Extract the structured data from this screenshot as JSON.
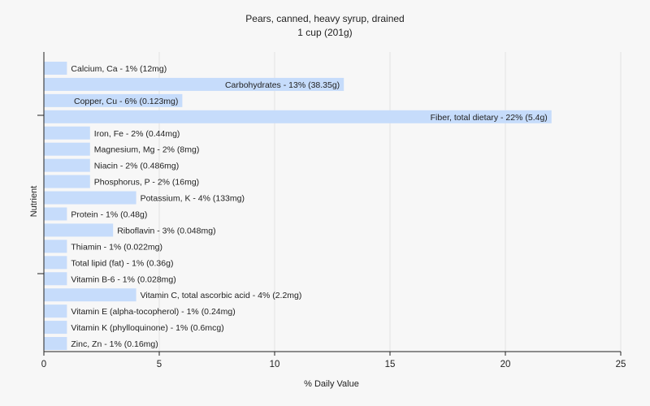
{
  "chart_data": {
    "type": "bar",
    "orientation": "horizontal",
    "title": "Pears, canned, heavy syrup, drained",
    "subtitle": "1 cup (201g)",
    "xlabel": "% Daily Value",
    "ylabel": "Nutrient",
    "xlim": [
      0,
      25
    ],
    "xticks": [
      0,
      5,
      10,
      15,
      20,
      25
    ],
    "grid": true,
    "bar_color": "#c6dcfb",
    "categories": [
      "Calcium, Ca",
      "Carbohydrates",
      "Copper, Cu",
      "Fiber, total dietary",
      "Iron, Fe",
      "Magnesium, Mg",
      "Niacin",
      "Phosphorus, P",
      "Potassium, K",
      "Protein",
      "Riboflavin",
      "Thiamin",
      "Total lipid (fat)",
      "Vitamin B-6",
      "Vitamin C, total ascorbic acid",
      "Vitamin E (alpha-tocopherol)",
      "Vitamin K (phylloquinone)",
      "Zinc, Zn"
    ],
    "values": [
      1,
      13,
      6,
      22,
      2,
      2,
      2,
      2,
      4,
      1,
      3,
      1,
      1,
      1,
      4,
      1,
      1,
      1
    ],
    "labels": [
      "Calcium, Ca - 1% (12mg)",
      "Carbohydrates - 13% (38.35g)",
      "Copper, Cu - 6% (0.123mg)",
      "Fiber, total dietary - 22% (5.4g)",
      "Iron, Fe - 2% (0.44mg)",
      "Magnesium, Mg - 2% (8mg)",
      "Niacin - 2% (0.486mg)",
      "Phosphorus, P - 2% (16mg)",
      "Potassium, K - 4% (133mg)",
      "Protein - 1% (0.48g)",
      "Riboflavin - 3% (0.048mg)",
      "Thiamin - 1% (0.022mg)",
      "Total lipid (fat) - 1% (0.36g)",
      "Vitamin B-6 - 1% (0.028mg)",
      "Vitamin C, total ascorbic acid - 4% (2.2mg)",
      "Vitamin E (alpha-tocopherol) - 1% (0.24mg)",
      "Vitamin K (phylloquinone) - 1% (0.6mcg)",
      "Zinc, Zn - 1% (0.16mg)"
    ]
  }
}
